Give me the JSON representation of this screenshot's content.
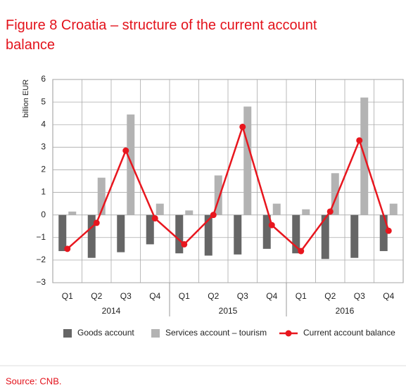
{
  "chart_data": {
    "type": "bar_line",
    "title": "Figure 8 Croatia –  structure of the current account balance",
    "y_label": "billion EUR",
    "categories": [
      "Q1",
      "Q2",
      "Q3",
      "Q4",
      "Q1",
      "Q2",
      "Q3",
      "Q4",
      "Q1",
      "Q2",
      "Q3",
      "Q4"
    ],
    "groups": [
      "2014",
      "2015",
      "2016"
    ],
    "series": [
      {
        "name": "Goods account",
        "color": "#666666",
        "kind": "bar",
        "values": [
          -1.6,
          -1.9,
          -1.65,
          -1.3,
          -1.7,
          -1.8,
          -1.75,
          -1.5,
          -1.7,
          -1.95,
          -1.9,
          -1.6
        ]
      },
      {
        "name": "Services account – tourism",
        "color": "#b3b3b3",
        "kind": "bar",
        "values": [
          0.15,
          1.65,
          4.45,
          0.5,
          0.2,
          1.75,
          4.8,
          0.5,
          0.25,
          1.85,
          5.2,
          0.5
        ]
      },
      {
        "name": "Current account balance",
        "color": "#e8161e",
        "kind": "line",
        "values": [
          -1.5,
          -0.35,
          2.85,
          -0.15,
          -1.3,
          0.0,
          3.9,
          -0.45,
          -1.6,
          0.15,
          3.3,
          -0.7
        ]
      }
    ],
    "ylim": [
      -3,
      6
    ],
    "yticks": [
      {
        "value": -3,
        "label": "−3"
      },
      {
        "value": -2,
        "label": "−2"
      },
      {
        "value": -1,
        "label": "−1"
      },
      0,
      1,
      2,
      3,
      4,
      5,
      6
    ],
    "grid": true,
    "source": "Source: CNB."
  }
}
